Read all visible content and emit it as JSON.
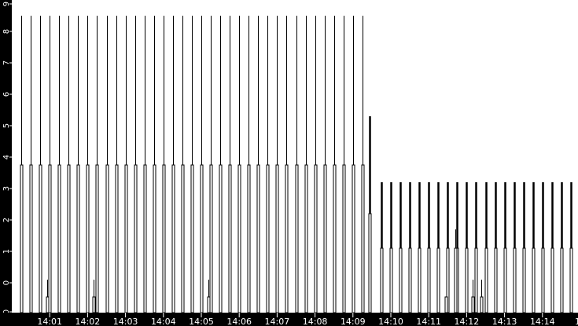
{
  "chart_data": {
    "type": "line",
    "title": "",
    "xlabel": "",
    "ylabel": "",
    "x_start": "14:00:00",
    "x_tick_labels": [
      "14:01",
      "14:02",
      "14:03",
      "14:04",
      "14:05",
      "14:06",
      "14:07",
      "14:08",
      "14:09",
      "14:10",
      "14:11",
      "14:12",
      "14:13",
      "14:14",
      "14"
    ],
    "y_tick_labels": [
      "9",
      "8",
      "7",
      "6",
      "5",
      "4",
      "3",
      "2",
      "1",
      "0",
      "0"
    ],
    "ylim": [
      -1,
      9
    ],
    "grid": false,
    "colors": {
      "background": "#ffffff",
      "line": "#000000",
      "axis_band": "#000000",
      "axis_text": "#ffffff"
    },
    "spike_groups": [
      {
        "peak": 8.5,
        "shoulder": 3.75,
        "times": [
          "14:00:15",
          "14:00:30",
          "14:00:45",
          "14:01:00",
          "14:01:15",
          "14:01:30",
          "14:01:45",
          "14:02:00",
          "14:02:15",
          "14:02:30",
          "14:02:45",
          "14:03:00",
          "14:03:15",
          "14:03:30",
          "14:03:45",
          "14:04:00",
          "14:04:15",
          "14:04:30",
          "14:04:45",
          "14:05:00",
          "14:05:15",
          "14:05:30",
          "14:05:45",
          "14:06:00",
          "14:06:15",
          "14:06:30",
          "14:06:45",
          "14:07:00",
          "14:07:15",
          "14:07:30",
          "14:07:45",
          "14:08:00",
          "14:08:15",
          "14:08:30",
          "14:08:45",
          "14:09:00",
          "14:09:15"
        ]
      },
      {
        "peak": 5.3,
        "shoulder": 2.2,
        "times": [
          "14:09:26"
        ]
      },
      {
        "peak": 3.2,
        "shoulder": 1.1,
        "times": [
          "14:09:45",
          "14:10:00",
          "14:10:15",
          "14:10:30",
          "14:10:45",
          "14:11:00",
          "14:11:15",
          "14:11:30",
          "14:11:45",
          "14:12:00",
          "14:12:15",
          "14:12:30",
          "14:12:45",
          "14:13:00",
          "14:13:15",
          "14:13:30",
          "14:13:45",
          "14:14:00",
          "14:14:15",
          "14:14:30",
          "14:14:45"
        ]
      }
    ],
    "small_spikes": [
      {
        "time": "14:00:56",
        "peak": 0.1,
        "shoulder": -0.45
      },
      {
        "time": "14:02:10",
        "peak": 0.1,
        "shoulder": -0.45
      },
      {
        "time": "14:05:11",
        "peak": 0.1,
        "shoulder": -0.45
      },
      {
        "time": "14:11:27",
        "peak": -0.45,
        "shoulder": -0.45
      },
      {
        "time": "14:11:42",
        "peak": 1.7,
        "shoulder": 1.1
      },
      {
        "time": "14:12:10",
        "peak": 0.1,
        "shoulder": -0.45
      },
      {
        "time": "14:12:23",
        "peak": 0.1,
        "shoulder": -0.45
      }
    ]
  }
}
